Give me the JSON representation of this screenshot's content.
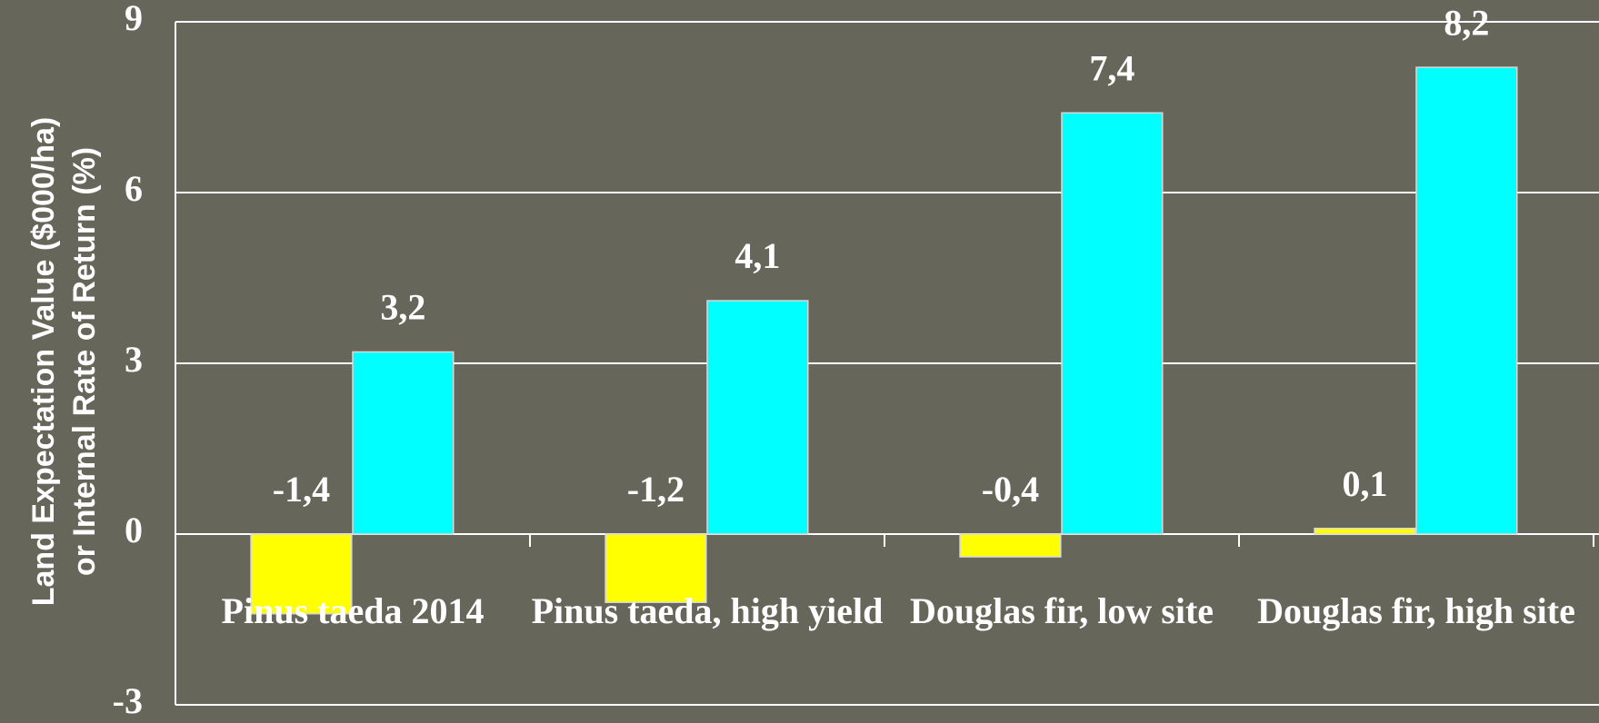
{
  "chart_data": {
    "type": "bar",
    "y_label": [
      "Land Expectation Value ($000/ha)",
      "or Internal Rate of Return (%)"
    ],
    "categories": [
      "Pinus taeda 2014",
      "Pinus taeda, high yield",
      "Douglas fir, low site",
      "Douglas fir, high site"
    ],
    "series": [
      {
        "color": "#ffff00",
        "values": [
          -1.4,
          -1.2,
          -0.4,
          0.1
        ],
        "value_labels": [
          "-1,4",
          "-1,2",
          "-0,4",
          "0,1"
        ]
      },
      {
        "color": "#00ffff",
        "values": [
          3.2,
          4.1,
          7.4,
          8.2
        ],
        "value_labels": [
          "3,2",
          "4,1",
          "7,4",
          "8,2"
        ]
      }
    ],
    "ylim": [
      -3,
      9
    ],
    "yticks": [
      -3,
      0,
      3,
      6,
      9
    ],
    "grid": true
  }
}
